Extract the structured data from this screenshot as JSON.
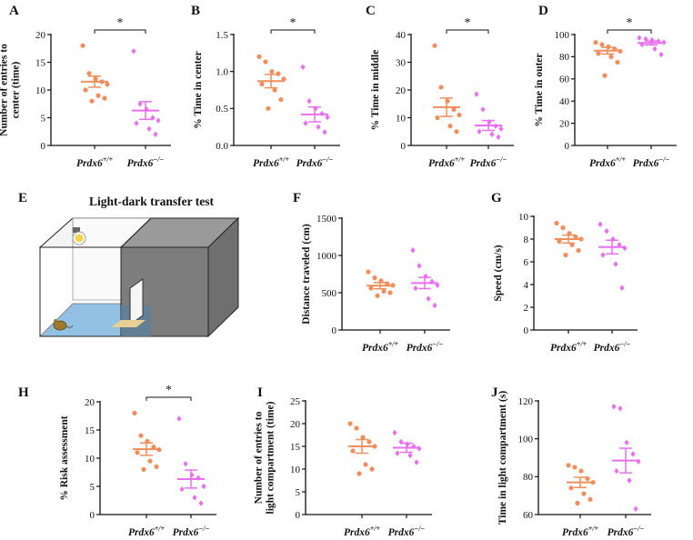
{
  "colors": {
    "wt": "#f28e5b",
    "ko": "#ea6ff0",
    "axis": "#111111",
    "floor": "#7fb7e0",
    "dark": "#8a8a8a",
    "mat": "#e8cf96",
    "bulb": "#f5d34a"
  },
  "group_labels": {
    "wt": "Prdx6",
    "wt_sup": "+/+",
    "ko": "Prdx6",
    "ko_sup": "−/−"
  },
  "diagram": {
    "panel": "E",
    "title": "Light-dark transfer test",
    "icons": [
      "lamp-icon",
      "mouse-icon",
      "door-icon"
    ]
  },
  "chart_data": [
    {
      "id": "A",
      "type": "scatter",
      "ylabel": [
        "Number of entries to",
        "center (time)"
      ],
      "ylim": [
        0,
        20
      ],
      "yticks": [
        0,
        5,
        10,
        15,
        20
      ],
      "groups": [
        {
          "name": "Prdx6+/+",
          "mean": 11.5,
          "sem": 1.0,
          "values": [
            18,
            13,
            12,
            11.5,
            11,
            10,
            9,
            8.5,
            8
          ]
        },
        {
          "name": "Prdx6−/−",
          "mean": 6.3,
          "sem": 1.6,
          "values": [
            17,
            7.5,
            6.5,
            5,
            4.5,
            4,
            3,
            2
          ]
        }
      ],
      "significance": "*"
    },
    {
      "id": "B",
      "type": "scatter",
      "ylabel": [
        "% Time in center"
      ],
      "ylim": [
        0,
        1.5
      ],
      "yticks": [
        0.0,
        0.5,
        1.0,
        1.5
      ],
      "groups": [
        {
          "name": "Prdx6+/+",
          "mean": 0.87,
          "sem": 0.09,
          "values": [
            1.2,
            1.13,
            1.0,
            0.97,
            0.9,
            0.83,
            0.75,
            0.62,
            0.5
          ]
        },
        {
          "name": "Prdx6−/−",
          "mean": 0.42,
          "sem": 0.1,
          "values": [
            1.06,
            0.6,
            0.5,
            0.43,
            0.38,
            0.3,
            0.25,
            0.18
          ]
        }
      ],
      "significance": "*"
    },
    {
      "id": "C",
      "type": "scatter",
      "ylabel": [
        "% Time in middle"
      ],
      "ylim": [
        0,
        40
      ],
      "yticks": [
        0,
        10,
        20,
        30,
        40
      ],
      "groups": [
        {
          "name": "Prdx6+/+",
          "mean": 13.8,
          "sem": 3.3,
          "values": [
            36,
            21,
            16,
            13,
            11,
            10,
            7,
            5
          ]
        },
        {
          "name": "Prdx6−/−",
          "mean": 7.2,
          "sem": 1.8,
          "values": [
            18.5,
            13,
            8.5,
            7,
            6,
            5,
            4,
            3
          ]
        }
      ],
      "significance": "*"
    },
    {
      "id": "D",
      "type": "scatter",
      "ylabel": [
        "% Time in outer"
      ],
      "ylim": [
        0,
        100
      ],
      "yticks": [
        0,
        20,
        40,
        60,
        80,
        100
      ],
      "groups": [
        {
          "name": "Prdx6+/+",
          "mean": 85.5,
          "sem": 3.0,
          "values": [
            93,
            91,
            89,
            87,
            85,
            83,
            80,
            75,
            63
          ]
        },
        {
          "name": "Prdx6−/−",
          "mean": 92.4,
          "sem": 1.8,
          "values": [
            97,
            96,
            95,
            94,
            93,
            91,
            87,
            82
          ]
        }
      ],
      "significance": "*"
    },
    {
      "id": "F",
      "type": "scatter",
      "ylabel": [
        "Distance traveled (cm)"
      ],
      "ylim": [
        0,
        1500
      ],
      "yticks": [
        0,
        500,
        1000,
        1500
      ],
      "groups": [
        {
          "name": "Prdx6+/+",
          "mean": 595,
          "sem": 42,
          "values": [
            780,
            700,
            660,
            620,
            600,
            560,
            520,
            500,
            460
          ]
        },
        {
          "name": "Prdx6−/−",
          "mean": 630,
          "sem": 75,
          "values": [
            1070,
            860,
            720,
            650,
            600,
            560,
            420,
            330
          ]
        }
      ],
      "significance": ""
    },
    {
      "id": "G",
      "type": "scatter",
      "ylabel": [
        "Speed (cm/s)"
      ],
      "ylim": [
        0,
        10
      ],
      "yticks": [
        0,
        2,
        4,
        6,
        8,
        10
      ],
      "groups": [
        {
          "name": "Prdx6+/+",
          "mean": 8.0,
          "sem": 0.35,
          "values": [
            9.4,
            9.0,
            8.5,
            8.2,
            8.0,
            7.8,
            7.5,
            7.0,
            6.6
          ]
        },
        {
          "name": "Prdx6−/−",
          "mean": 7.3,
          "sem": 0.6,
          "values": [
            9.3,
            8.7,
            8.0,
            7.5,
            7.2,
            6.6,
            5.8,
            3.7
          ]
        }
      ],
      "significance": ""
    },
    {
      "id": "H",
      "type": "scatter",
      "ylabel": [
        "% Risk assessment"
      ],
      "ylim": [
        0,
        20
      ],
      "yticks": [
        0,
        5,
        10,
        15,
        20
      ],
      "groups": [
        {
          "name": "Prdx6+/+",
          "mean": 11.6,
          "sem": 1.1,
          "values": [
            18,
            14,
            13,
            12,
            11.5,
            11,
            9.5,
            8.5,
            8
          ]
        },
        {
          "name": "Prdx6−/−",
          "mean": 6.3,
          "sem": 1.6,
          "values": [
            17,
            9,
            7,
            6.5,
            5,
            4.5,
            3,
            2
          ]
        }
      ],
      "significance": "*"
    },
    {
      "id": "I",
      "type": "scatter",
      "ylabel": [
        "Number of entries to",
        "light compartment (time)"
      ],
      "ylim": [
        0,
        25
      ],
      "yticks": [
        0,
        5,
        10,
        15,
        20,
        25
      ],
      "groups": [
        {
          "name": "Prdx6+/+",
          "mean": 15.0,
          "sem": 1.5,
          "values": [
            20,
            19,
            17,
            16,
            15,
            14,
            11,
            10,
            9
          ]
        },
        {
          "name": "Prdx6−/−",
          "mean": 14.7,
          "sem": 1.0,
          "values": [
            18,
            16,
            15.5,
            15,
            14.5,
            13.5,
            13,
            11.5
          ]
        }
      ],
      "significance": ""
    },
    {
      "id": "J",
      "type": "scatter",
      "ylabel": [
        "Time in light compartment (s)"
      ],
      "ylim": [
        60,
        120
      ],
      "yticks": [
        60,
        80,
        100,
        120
      ],
      "groups": [
        {
          "name": "Prdx6+/+",
          "mean": 77,
          "sem": 2.7,
          "values": [
            86,
            85,
            83,
            79,
            77,
            74,
            71,
            68,
            66
          ]
        },
        {
          "name": "Prdx6−/−",
          "mean": 88.5,
          "sem": 6.5,
          "values": [
            117,
            116,
            98,
            92,
            88,
            83,
            78,
            63
          ]
        }
      ],
      "significance": ""
    }
  ]
}
